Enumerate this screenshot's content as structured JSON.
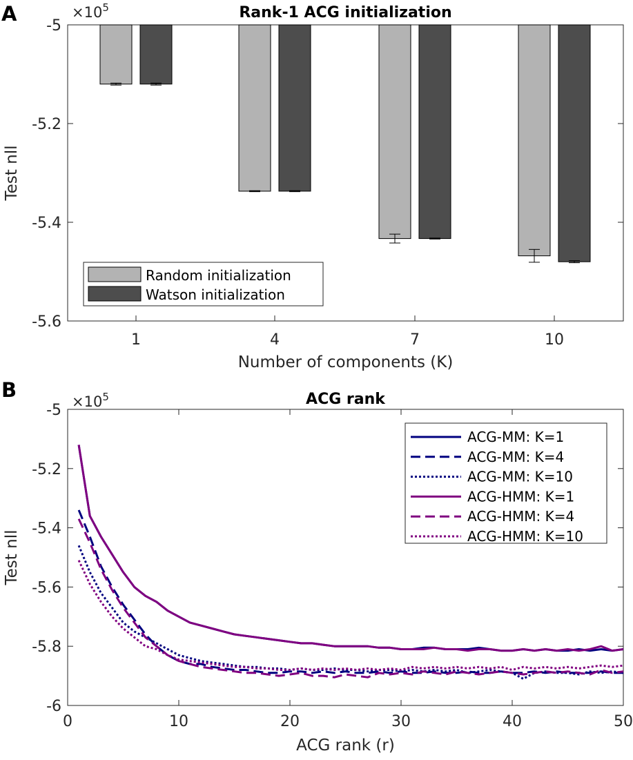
{
  "panel_a": {
    "letter": "A",
    "exponent": "×10",
    "exponent_power": "5"
  },
  "panel_b": {
    "letter": "B",
    "exponent": "×10",
    "exponent_power": "5"
  },
  "chart_data": [
    {
      "type": "bar",
      "title": "Rank-1 ACG initialization",
      "xlabel": "Number of components (K)",
      "ylabel": "Test nll",
      "categories": [
        "1",
        "4",
        "7",
        "10"
      ],
      "ylim": [
        -5.6,
        -5.0
      ],
      "yticks": [
        "-5",
        "-5.2",
        "-5.4",
        "-5.6"
      ],
      "y_exponent": "×10^5",
      "bar_baseline": -5.0,
      "legend_position": "bottom-left",
      "series": [
        {
          "name": "Random initialization",
          "color": "#b3b3b3",
          "values": [
            -5.12,
            -5.337,
            -5.433,
            -5.468
          ],
          "errors": [
            0.002,
            0.001,
            0.009,
            0.013
          ]
        },
        {
          "name": "Watson initialization",
          "color": "#4d4d4d",
          "values": [
            -5.12,
            -5.337,
            -5.433,
            -5.48
          ],
          "errors": [
            0.002,
            0.001,
            0.001,
            0.002
          ]
        }
      ]
    },
    {
      "type": "line",
      "title": "ACG rank",
      "xlabel": "ACG rank (r)",
      "ylabel": "Test nll",
      "xlim": [
        0,
        50
      ],
      "ylim": [
        -6.0,
        -5.0
      ],
      "xticks": [
        "0",
        "10",
        "20",
        "30",
        "40",
        "50"
      ],
      "yticks": [
        "-5",
        "-5.2",
        "-5.4",
        "-5.6",
        "-5.8",
        "-6"
      ],
      "y_exponent": "×10^5",
      "legend_position": "top-right",
      "x": [
        1,
        2,
        3,
        4,
        5,
        6,
        7,
        8,
        9,
        10,
        11,
        12,
        13,
        14,
        15,
        16,
        17,
        18,
        19,
        20,
        21,
        22,
        23,
        24,
        25,
        26,
        27,
        28,
        29,
        30,
        31,
        32,
        33,
        34,
        35,
        36,
        37,
        38,
        39,
        40,
        41,
        42,
        43,
        44,
        45,
        46,
        47,
        48,
        49,
        50
      ],
      "series": [
        {
          "name": "ACG-MM: K=1",
          "color": "#00007f",
          "dash": "solid",
          "values": [
            -5.12,
            -5.36,
            -5.43,
            -5.49,
            -5.55,
            -5.6,
            -5.63,
            -5.65,
            -5.68,
            -5.7,
            -5.72,
            -5.73,
            -5.74,
            -5.75,
            -5.76,
            -5.765,
            -5.77,
            -5.775,
            -5.78,
            -5.785,
            -5.79,
            -5.79,
            -5.795,
            -5.8,
            -5.8,
            -5.8,
            -5.8,
            -5.805,
            -5.805,
            -5.81,
            -5.81,
            -5.805,
            -5.805,
            -5.81,
            -5.81,
            -5.81,
            -5.805,
            -5.81,
            -5.815,
            -5.815,
            -5.81,
            -5.815,
            -5.81,
            -5.815,
            -5.815,
            -5.81,
            -5.815,
            -5.81,
            -5.815,
            -5.81
          ]
        },
        {
          "name": "ACG-MM: K=4",
          "color": "#00007f",
          "dash": "dashed",
          "values": [
            -5.34,
            -5.43,
            -5.53,
            -5.6,
            -5.66,
            -5.71,
            -5.76,
            -5.8,
            -5.83,
            -5.85,
            -5.86,
            -5.86,
            -5.87,
            -5.875,
            -5.88,
            -5.88,
            -5.885,
            -5.89,
            -5.89,
            -5.885,
            -5.885,
            -5.89,
            -5.885,
            -5.89,
            -5.885,
            -5.89,
            -5.89,
            -5.885,
            -5.89,
            -5.885,
            -5.89,
            -5.89,
            -5.885,
            -5.89,
            -5.89,
            -5.885,
            -5.89,
            -5.89,
            -5.885,
            -5.89,
            -5.89,
            -5.885,
            -5.89,
            -5.885,
            -5.89,
            -5.89,
            -5.89,
            -5.885,
            -5.89,
            -5.89
          ]
        },
        {
          "name": "ACG-MM: K=10",
          "color": "#00007f",
          "dash": "dotted",
          "values": [
            -5.46,
            -5.55,
            -5.62,
            -5.67,
            -5.72,
            -5.75,
            -5.77,
            -5.79,
            -5.81,
            -5.83,
            -5.84,
            -5.85,
            -5.855,
            -5.86,
            -5.865,
            -5.87,
            -5.87,
            -5.875,
            -5.875,
            -5.88,
            -5.875,
            -5.88,
            -5.88,
            -5.875,
            -5.88,
            -5.88,
            -5.885,
            -5.88,
            -5.88,
            -5.885,
            -5.88,
            -5.885,
            -5.88,
            -5.885,
            -5.88,
            -5.89,
            -5.885,
            -5.88,
            -5.885,
            -5.89,
            -5.91,
            -5.89,
            -5.885,
            -5.89,
            -5.89,
            -5.895,
            -5.885,
            -5.89,
            -5.885,
            -5.89
          ]
        },
        {
          "name": "ACG-HMM: K=1",
          "color": "#800080",
          "dash": "solid",
          "values": [
            -5.12,
            -5.36,
            -5.43,
            -5.49,
            -5.55,
            -5.6,
            -5.63,
            -5.65,
            -5.68,
            -5.7,
            -5.72,
            -5.73,
            -5.74,
            -5.75,
            -5.76,
            -5.765,
            -5.77,
            -5.775,
            -5.78,
            -5.785,
            -5.79,
            -5.79,
            -5.795,
            -5.8,
            -5.8,
            -5.8,
            -5.8,
            -5.805,
            -5.805,
            -5.81,
            -5.81,
            -5.81,
            -5.805,
            -5.81,
            -5.81,
            -5.815,
            -5.81,
            -5.81,
            -5.815,
            -5.815,
            -5.81,
            -5.815,
            -5.81,
            -5.815,
            -5.81,
            -5.815,
            -5.81,
            -5.8,
            -5.815,
            -5.81
          ]
        },
        {
          "name": "ACG-HMM: K=4",
          "color": "#800080",
          "dash": "dashed",
          "values": [
            -5.37,
            -5.45,
            -5.54,
            -5.61,
            -5.67,
            -5.72,
            -5.77,
            -5.8,
            -5.83,
            -5.85,
            -5.86,
            -5.87,
            -5.875,
            -5.88,
            -5.885,
            -5.89,
            -5.89,
            -5.895,
            -5.9,
            -5.895,
            -5.89,
            -5.9,
            -5.9,
            -5.905,
            -5.895,
            -5.9,
            -5.905,
            -5.89,
            -5.895,
            -5.89,
            -5.895,
            -5.885,
            -5.89,
            -5.895,
            -5.885,
            -5.89,
            -5.895,
            -5.89,
            -5.885,
            -5.89,
            -5.895,
            -5.89,
            -5.885,
            -5.89,
            -5.885,
            -5.89,
            -5.895,
            -5.88,
            -5.89,
            -5.885
          ]
        },
        {
          "name": "ACG-HMM: K=10",
          "color": "#800080",
          "dash": "dotted",
          "values": [
            -5.51,
            -5.59,
            -5.65,
            -5.7,
            -5.74,
            -5.77,
            -5.8,
            -5.81,
            -5.83,
            -5.845,
            -5.85,
            -5.855,
            -5.86,
            -5.865,
            -5.87,
            -5.87,
            -5.875,
            -5.875,
            -5.88,
            -5.88,
            -5.875,
            -5.88,
            -5.875,
            -5.88,
            -5.875,
            -5.88,
            -5.875,
            -5.88,
            -5.875,
            -5.88,
            -5.87,
            -5.875,
            -5.87,
            -5.875,
            -5.87,
            -5.875,
            -5.87,
            -5.875,
            -5.87,
            -5.88,
            -5.87,
            -5.875,
            -5.87,
            -5.875,
            -5.87,
            -5.875,
            -5.87,
            -5.865,
            -5.87,
            -5.865
          ]
        }
      ]
    }
  ]
}
